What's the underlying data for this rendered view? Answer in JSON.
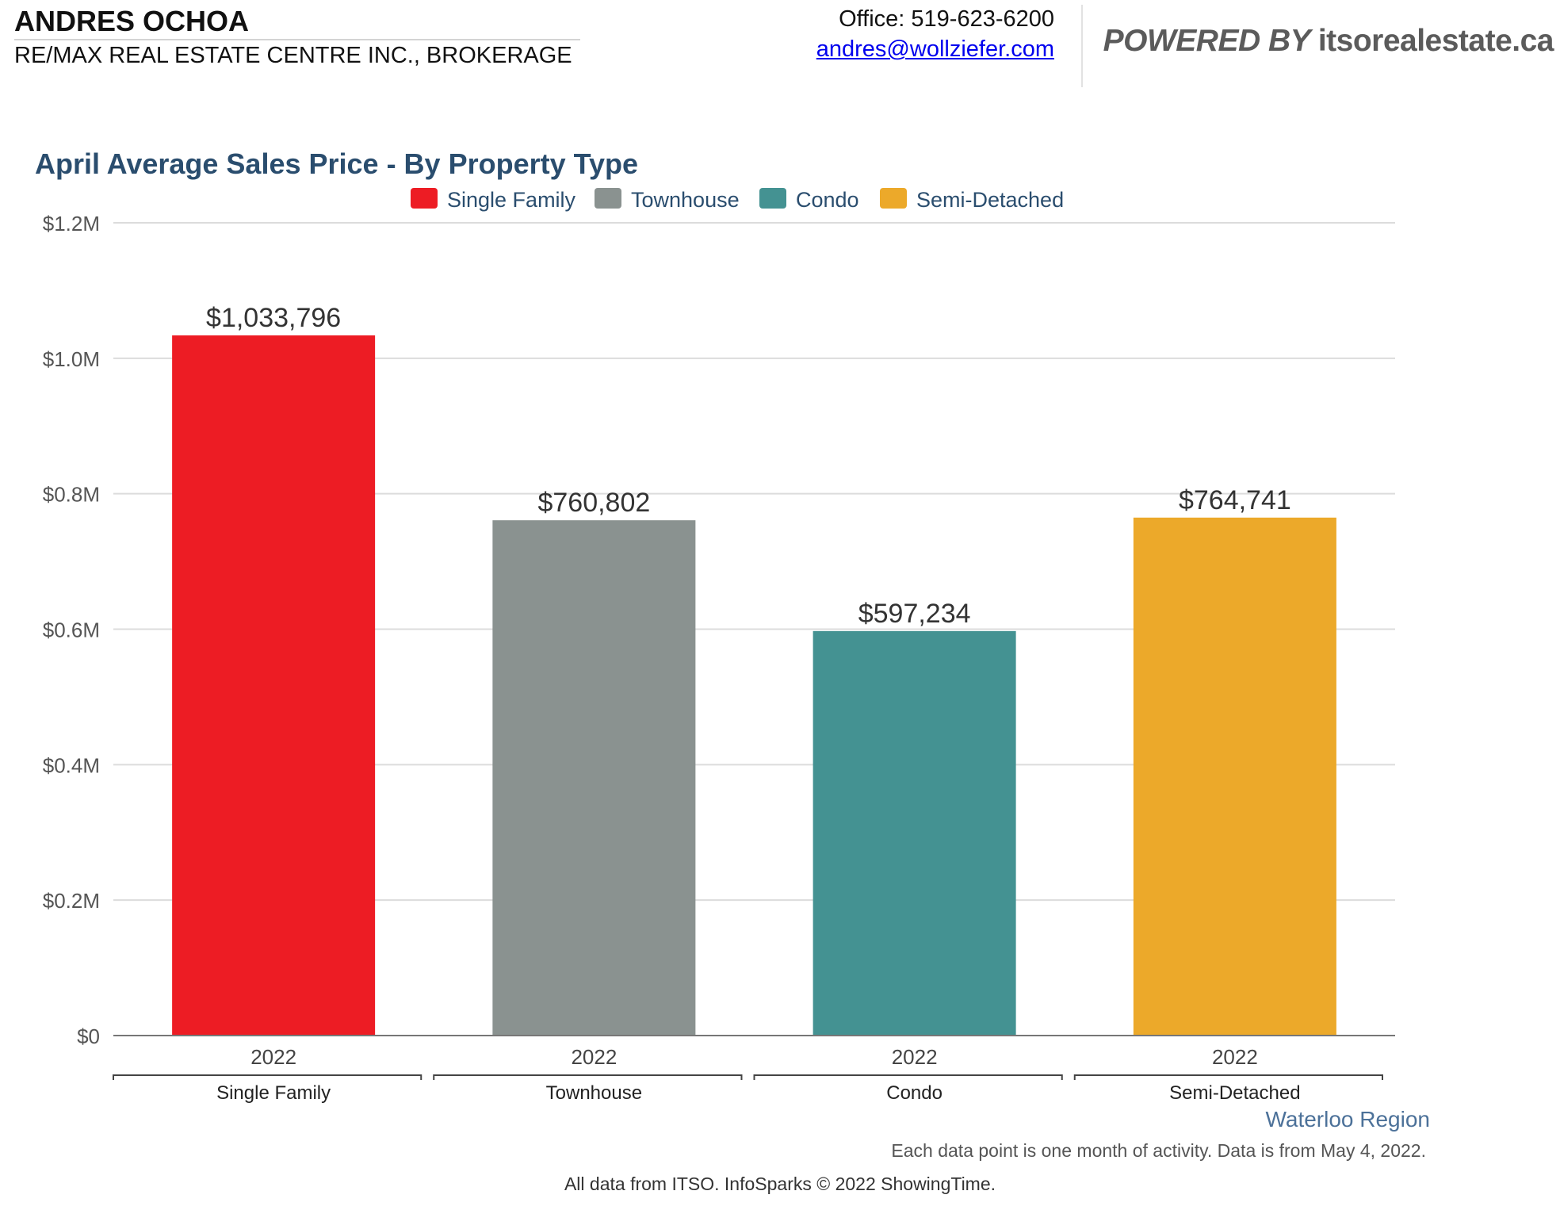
{
  "header": {
    "agent_name": "ANDRES OCHOA",
    "brokerage": "RE/MAX REAL ESTATE CENTRE INC., BROKERAGE",
    "office": "Office: 519-623-6200",
    "email": "andres@wollziefer.com",
    "powered_by": "POWERED BY",
    "powered_site": "itsorealestate.ca"
  },
  "colors": {
    "single_family": "#ed1c24",
    "townhouse": "#8a9290",
    "condo": "#449292",
    "semi_detached": "#eca92a",
    "title": "#2a4d6e",
    "axis_text": "#555555"
  },
  "chart_data": {
    "type": "bar",
    "title": "April Average Sales Price - By Property Type",
    "legend_position": "top-center",
    "legend": [
      "Single Family",
      "Townhouse",
      "Condo",
      "Semi-Detached"
    ],
    "categories": [
      "Single Family",
      "Townhouse",
      "Condo",
      "Semi-Detached"
    ],
    "x_sub_labels": [
      "2022",
      "2022",
      "2022",
      "2022"
    ],
    "values": [
      1033796,
      760802,
      597234,
      764741
    ],
    "value_labels": [
      "$1,033,796",
      "$760,802",
      "$597,234",
      "$764,741"
    ],
    "y_ticks": [
      0,
      200000,
      400000,
      600000,
      800000,
      1000000,
      1200000
    ],
    "y_tick_labels": [
      "$0",
      "$0.2M",
      "$0.4M",
      "$0.6M",
      "$0.8M",
      "$1.0M",
      "$1.2M"
    ],
    "ylim": [
      0,
      1200000
    ],
    "xlabel": "",
    "ylabel": "",
    "grid": true
  },
  "footer": {
    "region": "Waterloo Region",
    "note": "Each data point is one month of activity. Data is from May 4, 2022.",
    "credits": "All data from ITSO. InfoSparks © 2022 ShowingTime."
  }
}
